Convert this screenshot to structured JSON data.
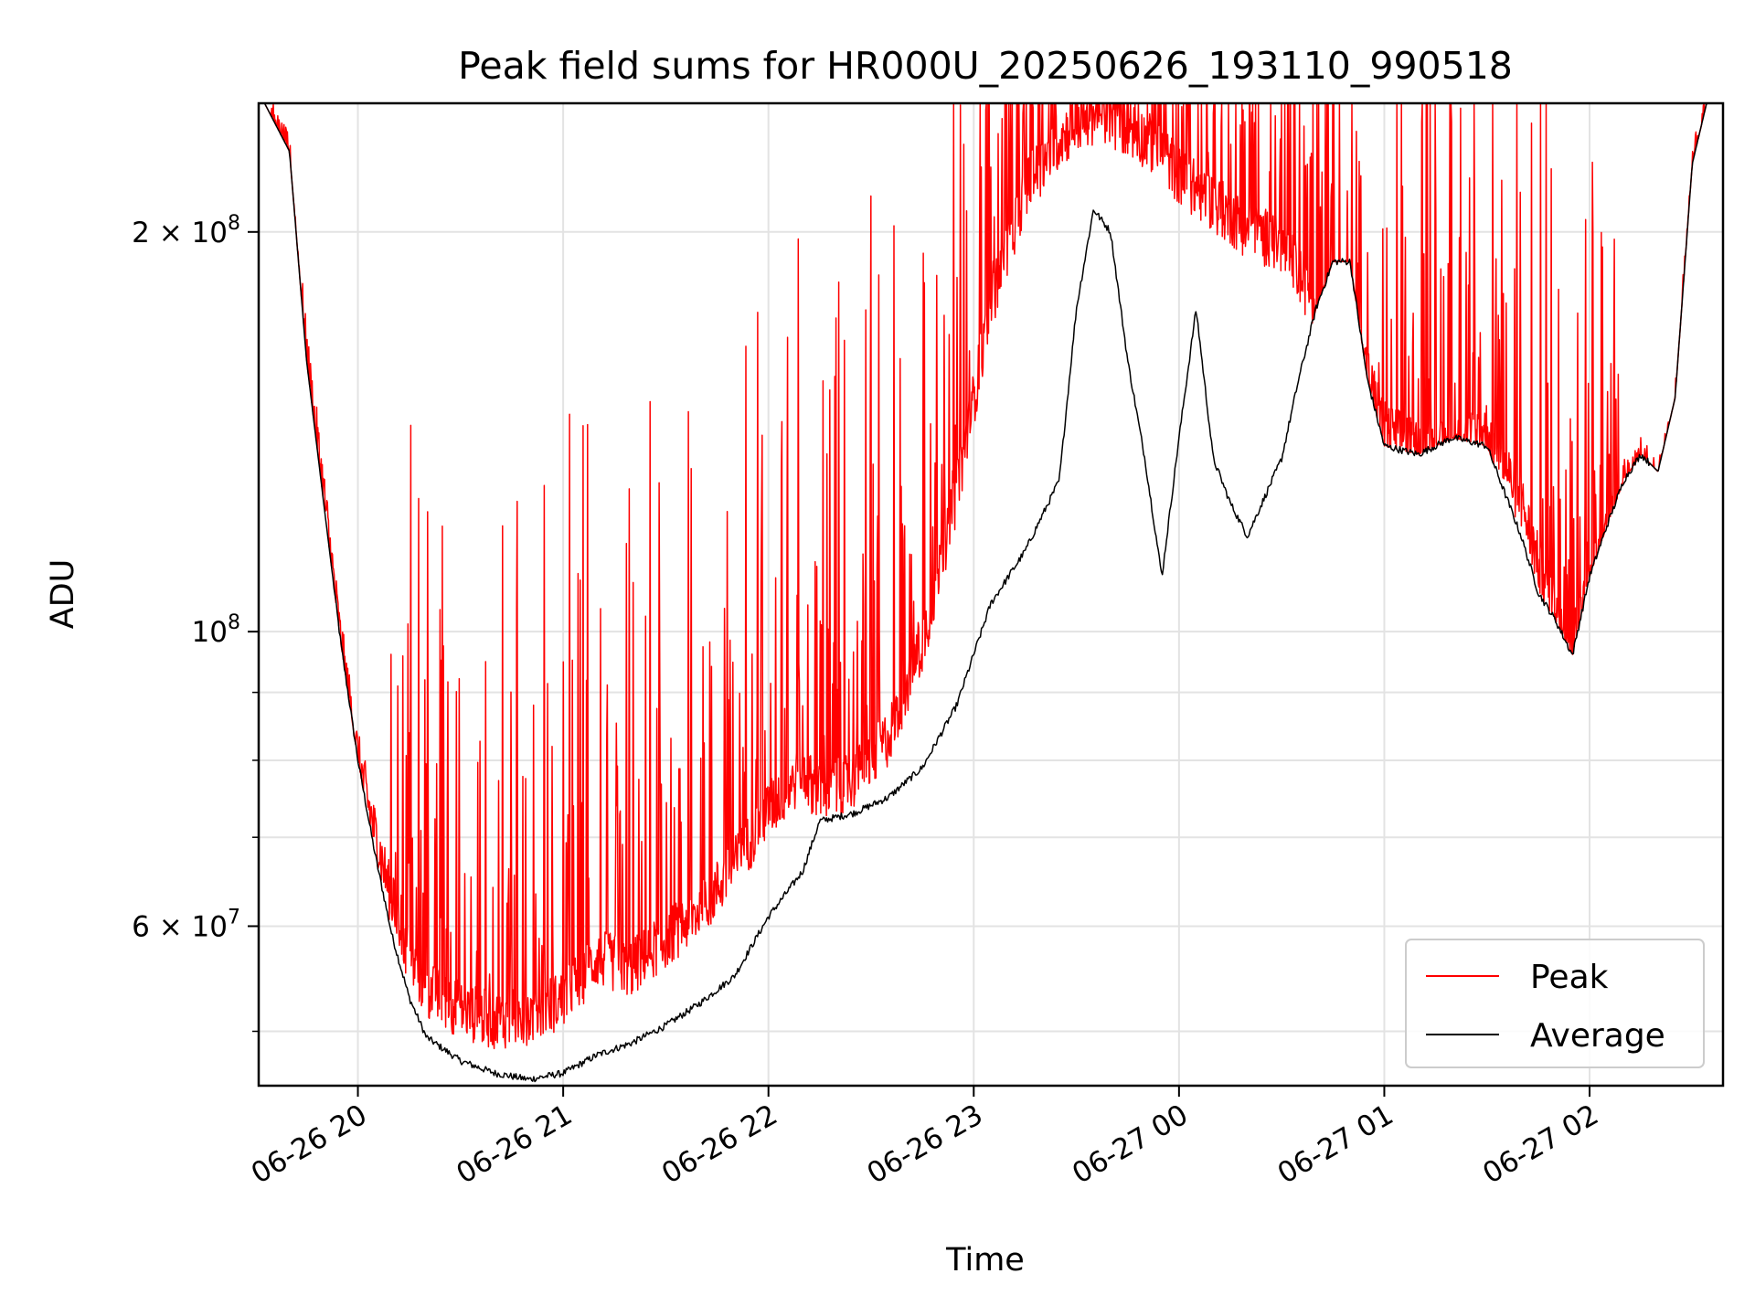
{
  "chart_data": {
    "type": "line",
    "title": "Peak field sums for HR000U_20250626_193110_990518",
    "xlabel": "Time",
    "ylabel": "ADU",
    "yscale": "log",
    "xlim": [
      "2025-06-26 19:31",
      "2025-06-27 02:39"
    ],
    "ylim": [
      45500000,
      250000000
    ],
    "grid": true,
    "legend_position": "lower-right",
    "x_ticks": [
      "06-26 20",
      "06-26 21",
      "06-26 22",
      "06-26 23",
      "06-27 00",
      "06-27 01",
      "06-27 02"
    ],
    "x_tick_times": [
      "2025-06-26 20:00",
      "2025-06-26 21:00",
      "2025-06-26 22:00",
      "2025-06-26 23:00",
      "2025-06-27 00:00",
      "2025-06-27 01:00",
      "2025-06-27 02:00"
    ],
    "y_ticks_major": [
      {
        "value": 60000000,
        "label": "6 × 10",
        "exp": "7"
      },
      {
        "value": 100000000,
        "label": "10",
        "exp": "8"
      },
      {
        "value": 200000000,
        "label": "2 × 10",
        "exp": "8"
      }
    ],
    "y_ticks_minor": [
      50000000,
      70000000,
      80000000,
      90000000
    ],
    "x": [
      "2025-06-26 19:31",
      "2025-06-26 19:40",
      "2025-06-26 19:45",
      "2025-06-26 19:50",
      "2025-06-26 19:55",
      "2025-06-26 20:00",
      "2025-06-26 20:05",
      "2025-06-26 20:10",
      "2025-06-26 20:15",
      "2025-06-26 20:20",
      "2025-06-26 20:30",
      "2025-06-26 20:40",
      "2025-06-26 20:50",
      "2025-06-26 21:00",
      "2025-06-26 21:10",
      "2025-06-26 21:20",
      "2025-06-26 21:30",
      "2025-06-26 21:40",
      "2025-06-26 21:50",
      "2025-06-26 22:00",
      "2025-06-26 22:10",
      "2025-06-26 22:15",
      "2025-06-26 22:25",
      "2025-06-26 22:35",
      "2025-06-26 22:45",
      "2025-06-26 22:55",
      "2025-06-26 23:05",
      "2025-06-26 23:15",
      "2025-06-26 23:25",
      "2025-06-26 23:30",
      "2025-06-26 23:35",
      "2025-06-26 23:40",
      "2025-06-26 23:45",
      "2025-06-26 23:50",
      "2025-06-26 23:55",
      "2025-06-27 00:00",
      "2025-06-27 00:05",
      "2025-06-27 00:10",
      "2025-06-27 00:15",
      "2025-06-27 00:20",
      "2025-06-27 00:30",
      "2025-06-27 00:35",
      "2025-06-27 00:40",
      "2025-06-27 00:45",
      "2025-06-27 00:50",
      "2025-06-27 00:55",
      "2025-06-27 01:00",
      "2025-06-27 01:10",
      "2025-06-27 01:20",
      "2025-06-27 01:30",
      "2025-06-27 01:40",
      "2025-06-27 01:45",
      "2025-06-27 01:50",
      "2025-06-27 01:55",
      "2025-06-27 02:00",
      "2025-06-27 02:05",
      "2025-06-27 02:10",
      "2025-06-27 02:15",
      "2025-06-27 02:20",
      "2025-06-27 02:25",
      "2025-06-27 02:30",
      "2025-06-27 02:35"
    ],
    "series": [
      {
        "name": "Peak",
        "color": "#ff0000",
        "values": [
          255000000,
          230000000,
          165000000,
          130000000,
          100000000,
          82000000,
          72000000,
          64000000,
          58000000,
          55000000,
          53000000,
          52000000,
          52500000,
          54000000,
          58000000,
          57000000,
          60000000,
          63000000,
          68000000,
          75000000,
          80000000,
          77000000,
          79000000,
          85000000,
          100000000,
          130000000,
          180000000,
          220000000,
          240000000,
          246000000,
          250000000,
          248000000,
          245000000,
          240000000,
          235000000,
          225000000,
          220000000,
          215000000,
          210000000,
          205000000,
          200000000,
          190000000,
          180000000,
          175000000,
          170000000,
          160000000,
          145000000,
          140000000,
          140000000,
          145000000,
          128000000,
          115000000,
          107000000,
          100000000,
          110000000,
          122000000,
          132000000,
          136000000,
          132000000,
          150000000,
          225000000,
          255000000
        ]
      },
      {
        "name": "Average",
        "color": "#000000",
        "values": [
          255000000,
          230000000,
          160000000,
          125000000,
          98000000,
          80000000,
          68000000,
          59000000,
          53000000,
          49500000,
          47500000,
          46500000,
          46000000,
          46500000,
          48000000,
          49000000,
          50500000,
          52500000,
          55000000,
          61000000,
          66000000,
          72000000,
          73000000,
          75000000,
          79000000,
          88000000,
          105000000,
          115000000,
          130000000,
          175000000,
          208000000,
          200000000,
          160000000,
          135000000,
          110000000,
          140000000,
          175000000,
          135000000,
          125000000,
          118000000,
          135000000,
          155000000,
          175000000,
          190000000,
          190000000,
          155000000,
          138000000,
          136000000,
          140000000,
          138000000,
          118000000,
          107000000,
          102000000,
          96000000,
          110000000,
          120000000,
          130000000,
          136000000,
          132000000,
          150000000,
          225000000,
          255000000
        ]
      }
    ]
  }
}
